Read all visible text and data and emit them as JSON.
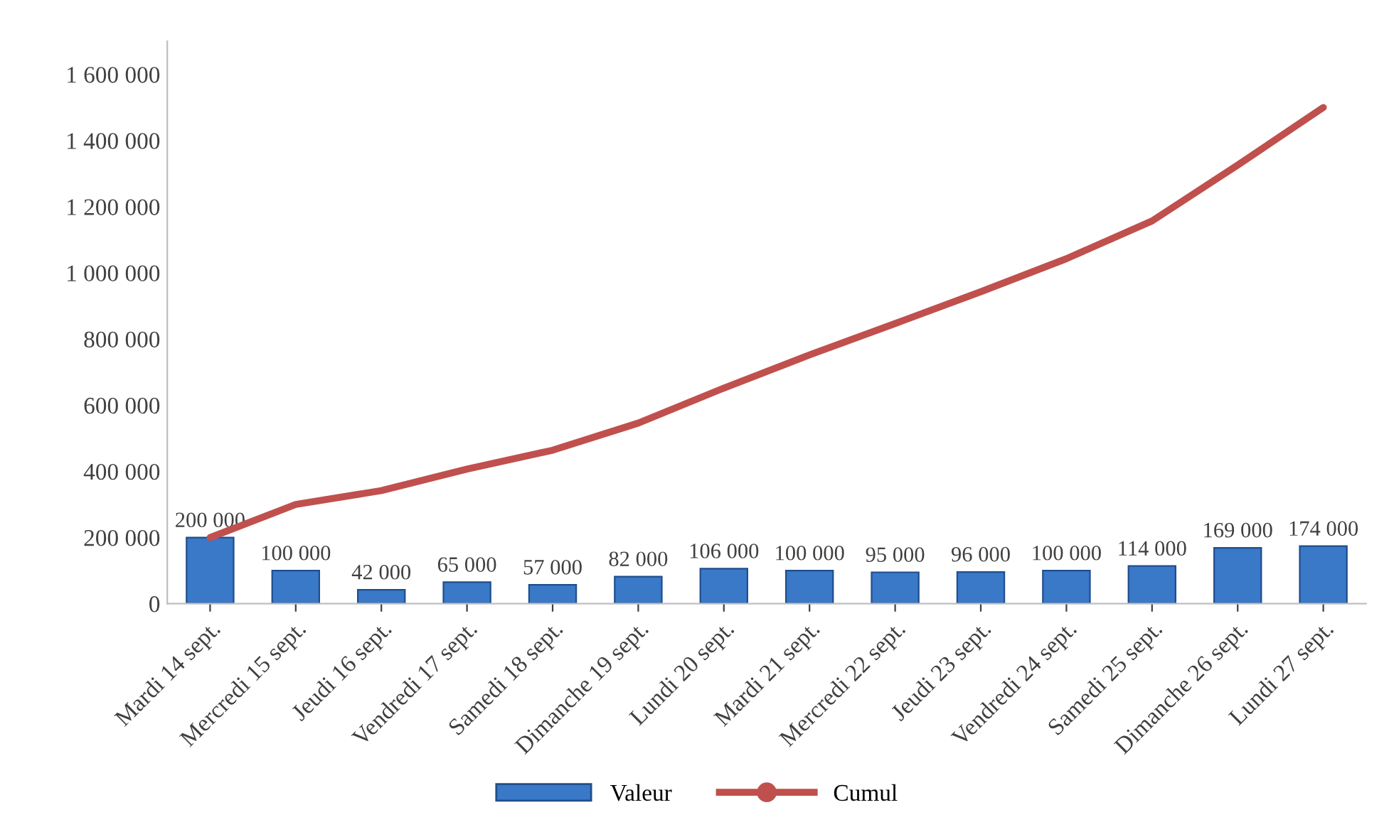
{
  "chart_data": {
    "type": "bar",
    "categories": [
      "Mardi 14 sept.",
      "Mercredi 15 sept.",
      "Jeudi 16 sept.",
      "Vendredi 17 sept.",
      "Samedi 18 sept.",
      "Dimanche 19 sept.",
      "Lundi 20 sept.",
      "Mardi 21 sept.",
      "Mercredi 22 sept.",
      "Jeudi 23 sept.",
      "Vendredi 24 sept.",
      "Samedi 25 sept.",
      "Dimanche 26 sept.",
      "Lundi 27 sept."
    ],
    "series": [
      {
        "name": "Valeur",
        "color": "#3a78c8",
        "values": [
          200000,
          100000,
          42000,
          65000,
          57000,
          82000,
          106000,
          100000,
          95000,
          96000,
          100000,
          114000,
          169000,
          174000
        ],
        "value_labels": [
          "200 000",
          "100 000",
          "42 000",
          "65 000",
          "57 000",
          "82 000",
          "106 000",
          "100 000",
          "95 000",
          "96 000",
          "100 000",
          "114 000",
          "169 000",
          "174 000"
        ]
      },
      {
        "name": "Cumul",
        "type": "line",
        "color": "#c0504d",
        "values": [
          200000,
          300000,
          342000,
          407000,
          464000,
          546000,
          652000,
          752000,
          847000,
          943000,
          1043000,
          1157000,
          1326000,
          1500000
        ]
      }
    ],
    "ylim": [
      0,
      1700000
    ],
    "yticks": [
      0,
      {
        "value": 200000,
        "label": "200 000"
      },
      {
        "value": 400000,
        "label": "400 000"
      },
      {
        "value": 600000,
        "label": "600 000"
      },
      {
        "value": 800000,
        "label": "800 000"
      },
      {
        "value": 1000000,
        "label": "1 000 000"
      },
      {
        "value": 1200000,
        "label": "1 200 000"
      },
      {
        "value": 1400000,
        "label": "1 400 000"
      },
      {
        "value": 1600000,
        "label": "1 600 000"
      }
    ],
    "grid": false,
    "legend": "bottom"
  }
}
